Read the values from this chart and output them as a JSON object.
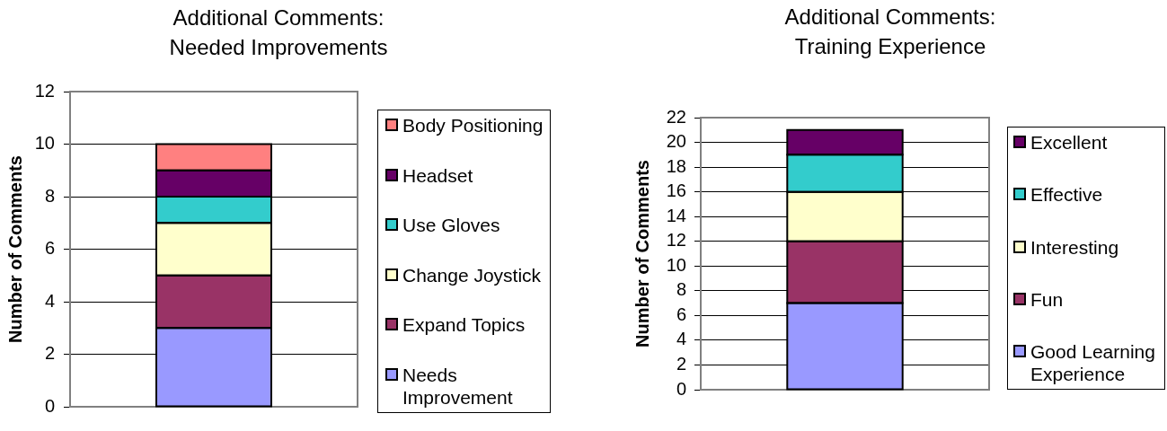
{
  "chart_data": [
    {
      "type": "bar",
      "title": "Additional Comments: Needed Improvements",
      "ylabel": "Number of Comments",
      "categories": [
        null
      ],
      "stacked": true,
      "series": [
        {
          "name": "Needs Improvement",
          "color": "#9999ff",
          "values": [
            3
          ]
        },
        {
          "name": "Expand Topics",
          "color": "#993366",
          "values": [
            2
          ]
        },
        {
          "name": "Change Joystick",
          "color": "#ffffcc",
          "values": [
            2
          ]
        },
        {
          "name": "Use Gloves",
          "color": "#33cccc",
          "values": [
            1
          ]
        },
        {
          "name": "Headset",
          "color": "#660066",
          "values": [
            1
          ]
        },
        {
          "name": "Body Positioning",
          "color": "#ff8080",
          "values": [
            1
          ]
        }
      ],
      "ylim": [
        0,
        12
      ],
      "yticks": [
        0,
        2,
        4,
        6,
        8,
        10,
        12
      ],
      "grid": "y",
      "legend": "right"
    },
    {
      "type": "bar",
      "title": "Additional Comments: Training Experience",
      "ylabel": "Number of Comments",
      "categories": [
        null
      ],
      "stacked": true,
      "series": [
        {
          "name": "Good Learning Experience",
          "color": "#9999ff",
          "values": [
            7
          ]
        },
        {
          "name": "Fun",
          "color": "#993366",
          "values": [
            5
          ]
        },
        {
          "name": "Interesting",
          "color": "#ffffcc",
          "values": [
            4
          ]
        },
        {
          "name": "Effective",
          "color": "#33cccc",
          "values": [
            3
          ]
        },
        {
          "name": "Excellent",
          "color": "#660066",
          "values": [
            2
          ]
        }
      ],
      "ylim": [
        0,
        22
      ],
      "yticks": [
        0,
        2,
        4,
        6,
        8,
        10,
        12,
        14,
        16,
        18,
        20,
        22
      ],
      "grid": "y",
      "legend": "right"
    }
  ]
}
